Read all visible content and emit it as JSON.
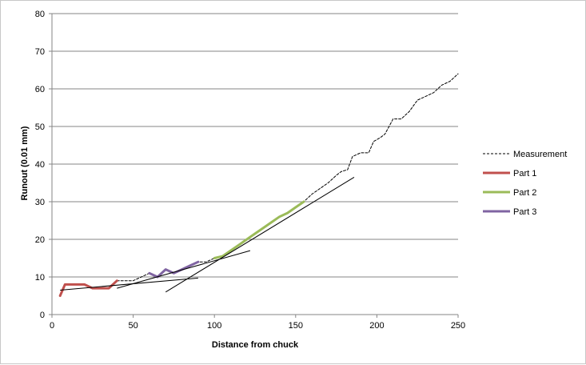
{
  "chart_data": {
    "type": "line",
    "title": "",
    "xlabel": "Distance from chuck",
    "ylabel": "Runout (0.01 mm)",
    "xlim": [
      0,
      250
    ],
    "ylim": [
      0,
      80
    ],
    "xticks": [
      0,
      50,
      100,
      150,
      200,
      250
    ],
    "yticks": [
      0,
      10,
      20,
      30,
      40,
      50,
      60,
      70,
      80
    ],
    "grid": "horizontal",
    "legend_position": "right",
    "series": [
      {
        "name": "Measurement",
        "style": "dashed",
        "color": "#000000",
        "x": [
          5,
          8,
          12,
          16,
          20,
          25,
          30,
          35,
          40,
          45,
          50,
          55,
          60,
          65,
          70,
          75,
          80,
          85,
          90,
          95,
          100,
          105,
          110,
          115,
          120,
          125,
          130,
          135,
          140,
          145,
          150,
          155,
          160,
          165,
          170,
          175,
          178,
          182,
          185,
          190,
          195,
          198,
          202,
          205,
          210,
          215,
          220,
          225,
          230,
          235,
          240,
          245,
          250
        ],
        "y": [
          5,
          8,
          8,
          8,
          8,
          7,
          7,
          7,
          9,
          9,
          9,
          10,
          11,
          10,
          12,
          11,
          12,
          13,
          14,
          14,
          15,
          15.5,
          17,
          18.5,
          20,
          21.5,
          23,
          24.5,
          26,
          27,
          28.5,
          30,
          32,
          33.5,
          35,
          37,
          38,
          38.5,
          42,
          43,
          43,
          46,
          47,
          48,
          52,
          52,
          54,
          57,
          58,
          59,
          61,
          62,
          64
        ]
      },
      {
        "name": "Part 1",
        "color": "#c0504d",
        "x": [
          5,
          8,
          12,
          16,
          20,
          25,
          30,
          35,
          40
        ],
        "y": [
          5,
          8,
          8,
          8,
          8,
          7,
          7,
          7,
          9
        ]
      },
      {
        "name": "Part 2",
        "color": "#9bbb59",
        "x": [
          100,
          105,
          110,
          115,
          120,
          125,
          130,
          135,
          140,
          145,
          150,
          155
        ],
        "y": [
          15,
          15.5,
          17,
          18.5,
          20,
          21.5,
          23,
          24.5,
          26,
          27,
          28.5,
          30
        ]
      },
      {
        "name": "Part 3",
        "color": "#8064a2",
        "x": [
          60,
          65,
          70,
          75,
          80,
          85,
          90
        ],
        "y": [
          11,
          10,
          12,
          11,
          12,
          13,
          14
        ]
      }
    ],
    "trendlines": [
      {
        "x": [
          5,
          90
        ],
        "y": [
          6.5,
          9.7
        ]
      },
      {
        "x": [
          40,
          122
        ],
        "y": [
          7,
          17
        ]
      },
      {
        "x": [
          70,
          186
        ],
        "y": [
          6,
          36.5
        ]
      }
    ],
    "colors": {
      "grid": "#868686",
      "axis": "#868686",
      "trendline": "#000000"
    }
  }
}
